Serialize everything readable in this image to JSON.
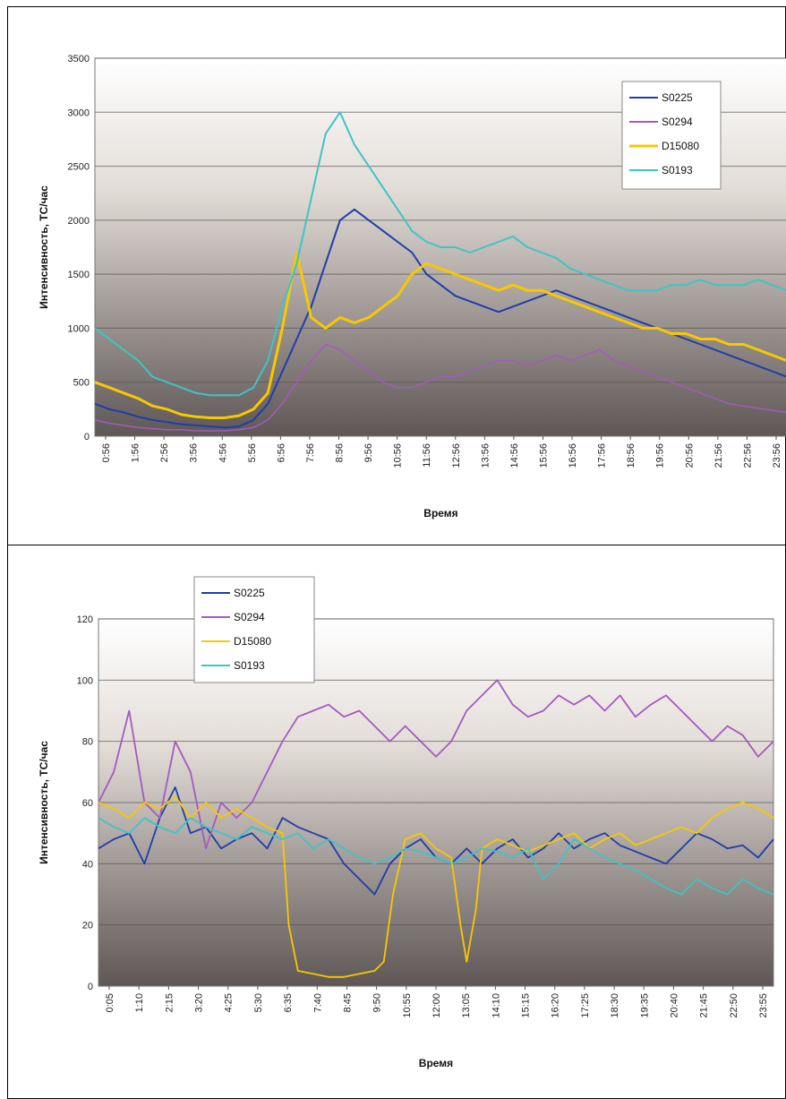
{
  "chart_data": [
    {
      "type": "line",
      "title": "",
      "xlabel": "Время",
      "ylabel": "Интенсивность, ТС/час",
      "ylim": [
        0,
        3500
      ],
      "yticks": [
        0,
        500,
        1000,
        1500,
        2000,
        2500,
        3000,
        3500
      ],
      "xticks": [
        "0:56",
        "1:56",
        "2:56",
        "3:56",
        "4:56",
        "5:56",
        "6:56",
        "7:56",
        "8:56",
        "9:56",
        "10:56",
        "11:56",
        "12:56",
        "13:56",
        "14:56",
        "15:56",
        "16:56",
        "17:56",
        "18:56",
        "19:56",
        "20:56",
        "21:56",
        "22:56",
        "23:56"
      ],
      "x_domain": [
        0,
        24
      ],
      "grid": "horizontal",
      "legend": "top-right",
      "series": [
        {
          "name": "S0225",
          "color": "#1f3ea8",
          "width": 2,
          "x": [
            0.0,
            0.5,
            1.0,
            1.5,
            2.0,
            2.5,
            3.0,
            3.5,
            4.0,
            4.5,
            5.0,
            5.5,
            6.0,
            6.5,
            7.0,
            7.5,
            8.0,
            8.5,
            9.0,
            9.5,
            10.0,
            10.5,
            11.0,
            11.5,
            12.0,
            12.5,
            13.0,
            13.5,
            14.0,
            14.5,
            15.0,
            15.5,
            16.0,
            16.5,
            17.0,
            17.5,
            18.0,
            18.5,
            19.0,
            19.5,
            20.0,
            20.5,
            21.0,
            21.5,
            22.0,
            22.5,
            23.0,
            23.5,
            24.0
          ],
          "y": [
            300,
            250,
            220,
            180,
            150,
            130,
            110,
            100,
            90,
            80,
            90,
            150,
            300,
            600,
            900,
            1200,
            1600,
            2000,
            2100,
            2000,
            1900,
            1800,
            1700,
            1500,
            1400,
            1300,
            1250,
            1200,
            1150,
            1200,
            1250,
            1300,
            1350,
            1300,
            1250,
            1200,
            1150,
            1100,
            1050,
            1000,
            950,
            900,
            850,
            800,
            750,
            700,
            650,
            600,
            550
          ]
        },
        {
          "name": "S0294",
          "color": "#a35bbd",
          "width": 1.5,
          "x": [
            0.0,
            0.5,
            1.0,
            1.5,
            2.0,
            2.5,
            3.0,
            3.5,
            4.0,
            4.5,
            5.0,
            5.5,
            6.0,
            6.5,
            7.0,
            7.5,
            8.0,
            8.5,
            9.0,
            9.5,
            10.0,
            10.5,
            11.0,
            11.5,
            12.0,
            12.5,
            13.0,
            13.5,
            14.0,
            14.5,
            15.0,
            15.5,
            16.0,
            16.5,
            17.0,
            17.5,
            18.0,
            18.5,
            19.0,
            19.5,
            20.0,
            20.5,
            21.0,
            21.5,
            22.0,
            22.5,
            23.0,
            23.5,
            24.0
          ],
          "y": [
            150,
            120,
            100,
            80,
            70,
            60,
            60,
            50,
            50,
            50,
            60,
            80,
            150,
            300,
            500,
            700,
            850,
            800,
            700,
            600,
            500,
            450,
            450,
            500,
            550,
            550,
            600,
            650,
            700,
            700,
            650,
            700,
            750,
            700,
            750,
            800,
            700,
            650,
            600,
            550,
            500,
            450,
            400,
            350,
            300,
            280,
            260,
            240,
            220
          ]
        },
        {
          "name": "D15080",
          "color": "#f8c800",
          "width": 3,
          "x": [
            0.0,
            0.5,
            1.0,
            1.5,
            2.0,
            2.5,
            3.0,
            3.5,
            4.0,
            4.5,
            5.0,
            5.5,
            6.0,
            6.5,
            7.0,
            7.5,
            8.0,
            8.5,
            9.0,
            9.5,
            10.0,
            10.5,
            11.0,
            11.5,
            12.0,
            12.5,
            13.0,
            13.5,
            14.0,
            14.5,
            15.0,
            15.5,
            16.0,
            16.5,
            17.0,
            17.5,
            18.0,
            18.5,
            19.0,
            19.5,
            20.0,
            20.5,
            21.0,
            21.5,
            22.0,
            22.5,
            23.0,
            23.5,
            24.0
          ],
          "y": [
            500,
            450,
            400,
            350,
            280,
            250,
            200,
            180,
            170,
            170,
            190,
            250,
            400,
            1000,
            1700,
            1100,
            1000,
            1100,
            1050,
            1100,
            1200,
            1300,
            1500,
            1600,
            1550,
            1500,
            1450,
            1400,
            1350,
            1400,
            1350,
            1350,
            1300,
            1250,
            1200,
            1150,
            1100,
            1050,
            1000,
            1000,
            950,
            950,
            900,
            900,
            850,
            850,
            800,
            750,
            700
          ]
        },
        {
          "name": "S0193",
          "color": "#3fc4c4",
          "width": 2,
          "x": [
            0.0,
            0.5,
            1.0,
            1.5,
            2.0,
            2.5,
            3.0,
            3.5,
            4.0,
            4.5,
            5.0,
            5.5,
            6.0,
            6.5,
            7.0,
            7.5,
            8.0,
            8.5,
            9.0,
            9.5,
            10.0,
            10.5,
            11.0,
            11.5,
            12.0,
            12.5,
            13.0,
            13.5,
            14.0,
            14.5,
            15.0,
            15.5,
            16.0,
            16.5,
            17.0,
            17.5,
            18.0,
            18.5,
            19.0,
            19.5,
            20.0,
            20.5,
            21.0,
            21.5,
            22.0,
            22.5,
            23.0,
            23.5,
            24.0
          ],
          "y": [
            1000,
            900,
            800,
            700,
            550,
            500,
            450,
            400,
            380,
            380,
            380,
            450,
            700,
            1200,
            1600,
            2200,
            2800,
            3000,
            2700,
            2500,
            2300,
            2100,
            1900,
            1800,
            1750,
            1750,
            1700,
            1750,
            1800,
            1850,
            1750,
            1700,
            1650,
            1550,
            1500,
            1450,
            1400,
            1350,
            1350,
            1350,
            1400,
            1400,
            1450,
            1400,
            1400,
            1400,
            1450,
            1400,
            1350
          ]
        }
      ]
    },
    {
      "type": "line",
      "title": "",
      "xlabel": "Время",
      "ylabel": "Интенсивность, ТС/час",
      "ylim": [
        0,
        120
      ],
      "yticks": [
        0,
        20,
        40,
        60,
        80,
        100,
        120
      ],
      "xticks": [
        "0:05",
        "1:10",
        "2:15",
        "3:20",
        "4:25",
        "5:30",
        "6:35",
        "7:40",
        "8:45",
        "9:50",
        "10:55",
        "12:00",
        "13:05",
        "14:10",
        "15:15",
        "16:20",
        "17:25",
        "18:30",
        "19:35",
        "20:40",
        "21:45",
        "22:50",
        "23:55"
      ],
      "x_domain": [
        0,
        22
      ],
      "grid": "horizontal",
      "legend": "top-left",
      "series": [
        {
          "name": "S0225",
          "color": "#1f3ea8",
          "width": 1.8,
          "x": [
            0.0,
            0.5,
            1.0,
            1.5,
            2.0,
            2.5,
            3.0,
            3.5,
            4.0,
            4.5,
            5.0,
            5.5,
            6.0,
            6.5,
            7.0,
            7.5,
            8.0,
            8.5,
            9.0,
            9.5,
            10.0,
            10.5,
            11.0,
            11.5,
            12.0,
            12.5,
            13.0,
            13.5,
            14.0,
            14.5,
            15.0,
            15.5,
            16.0,
            16.5,
            17.0,
            17.5,
            18.0,
            18.5,
            19.0,
            19.5,
            20.0,
            20.5,
            21.0,
            21.5,
            22.0
          ],
          "y": [
            45,
            48,
            50,
            40,
            55,
            65,
            50,
            52,
            45,
            48,
            50,
            45,
            55,
            52,
            50,
            48,
            40,
            35,
            30,
            40,
            45,
            48,
            42,
            40,
            45,
            40,
            45,
            48,
            42,
            45,
            50,
            45,
            48,
            50,
            46,
            44,
            42,
            40,
            45,
            50,
            48,
            45,
            46,
            42,
            48
          ]
        },
        {
          "name": "S0294",
          "color": "#a35bbd",
          "width": 1.8,
          "x": [
            0.0,
            0.5,
            1.0,
            1.5,
            2.0,
            2.5,
            3.0,
            3.5,
            4.0,
            4.5,
            5.0,
            5.5,
            6.0,
            6.5,
            7.0,
            7.5,
            8.0,
            8.5,
            9.0,
            9.5,
            10.0,
            10.5,
            11.0,
            11.5,
            12.0,
            12.5,
            13.0,
            13.5,
            14.0,
            14.5,
            15.0,
            15.5,
            16.0,
            16.5,
            17.0,
            17.5,
            18.0,
            18.5,
            19.0,
            19.5,
            20.0,
            20.5,
            21.0,
            21.5,
            22.0
          ],
          "y": [
            60,
            70,
            90,
            60,
            55,
            80,
            70,
            45,
            60,
            55,
            60,
            70,
            80,
            88,
            90,
            92,
            88,
            90,
            85,
            80,
            85,
            80,
            75,
            80,
            90,
            95,
            100,
            92,
            88,
            90,
            95,
            92,
            95,
            90,
            95,
            88,
            92,
            95,
            90,
            85,
            80,
            85,
            82,
            75,
            80
          ]
        },
        {
          "name": "D15080",
          "color": "#f8c800",
          "width": 1.8,
          "x": [
            0.0,
            0.5,
            1.0,
            1.5,
            2.0,
            2.5,
            3.0,
            3.5,
            4.0,
            4.5,
            5.0,
            5.5,
            6.0,
            6.2,
            6.5,
            7.0,
            7.5,
            8.0,
            8.5,
            9.0,
            9.3,
            9.6,
            10.0,
            10.5,
            11.0,
            11.5,
            11.8,
            12.0,
            12.3,
            12.5,
            13.0,
            13.5,
            14.0,
            14.5,
            15.0,
            15.5,
            16.0,
            16.5,
            17.0,
            17.5,
            18.0,
            18.5,
            19.0,
            19.5,
            20.0,
            20.5,
            21.0,
            21.5,
            22.0
          ],
          "y": [
            60,
            58,
            55,
            60,
            58,
            62,
            55,
            60,
            55,
            58,
            55,
            52,
            50,
            20,
            5,
            4,
            3,
            3,
            4,
            5,
            8,
            30,
            48,
            50,
            45,
            42,
            20,
            8,
            25,
            45,
            48,
            46,
            44,
            46,
            48,
            50,
            45,
            48,
            50,
            46,
            48,
            50,
            52,
            50,
            55,
            58,
            60,
            58,
            55
          ]
        },
        {
          "name": "S0193",
          "color": "#3fc4c4",
          "width": 1.8,
          "x": [
            0.0,
            0.5,
            1.0,
            1.5,
            2.0,
            2.5,
            3.0,
            3.5,
            4.0,
            4.5,
            5.0,
            5.5,
            6.0,
            6.5,
            7.0,
            7.5,
            8.0,
            8.5,
            9.0,
            9.5,
            10.0,
            10.5,
            11.0,
            11.5,
            12.0,
            12.5,
            13.0,
            13.5,
            14.0,
            14.5,
            15.0,
            15.5,
            16.0,
            16.5,
            17.0,
            17.5,
            18.0,
            18.5,
            19.0,
            19.5,
            20.0,
            20.5,
            21.0,
            21.5,
            22.0
          ],
          "y": [
            55,
            52,
            50,
            55,
            52,
            50,
            55,
            52,
            50,
            48,
            52,
            50,
            48,
            50,
            45,
            48,
            45,
            42,
            40,
            42,
            45,
            44,
            42,
            40,
            42,
            45,
            44,
            42,
            45,
            35,
            40,
            48,
            45,
            42,
            40,
            38,
            35,
            32,
            30,
            35,
            32,
            30,
            35,
            32,
            30
          ]
        }
      ]
    }
  ]
}
